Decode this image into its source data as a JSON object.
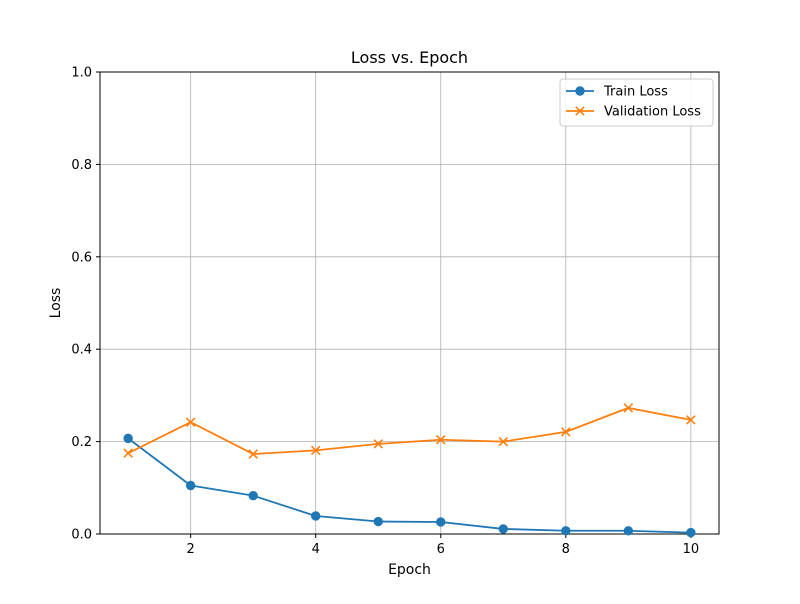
{
  "chart_data": {
    "type": "line",
    "title": "Loss vs. Epoch",
    "xlabel": "Epoch",
    "ylabel": "Loss",
    "x": [
      1,
      2,
      3,
      4,
      5,
      6,
      7,
      8,
      9,
      10
    ],
    "xlim": [
      0.55,
      10.45
    ],
    "ylim": [
      0,
      1.0
    ],
    "xticks": [
      2,
      4,
      6,
      8,
      10
    ],
    "yticks": [
      0.0,
      0.2,
      0.4,
      0.6,
      0.8,
      1.0
    ],
    "xtick_labels": [
      "2",
      "4",
      "6",
      "8",
      "10"
    ],
    "ytick_labels": [
      "0.0",
      "0.2",
      "0.4",
      "0.6",
      "0.8",
      "1.0"
    ],
    "grid": true,
    "legend_position": "top-right",
    "series": [
      {
        "name": "Train Loss",
        "marker": "circle",
        "color": "#1f77b4",
        "values": [
          0.207,
          0.105,
          0.083,
          0.039,
          0.027,
          0.026,
          0.011,
          0.007,
          0.007,
          0.003
        ]
      },
      {
        "name": "Validation Loss",
        "marker": "x",
        "color": "#ff7f0e",
        "values": [
          0.175,
          0.242,
          0.173,
          0.181,
          0.195,
          0.204,
          0.2,
          0.221,
          0.273,
          0.247
        ]
      }
    ]
  }
}
